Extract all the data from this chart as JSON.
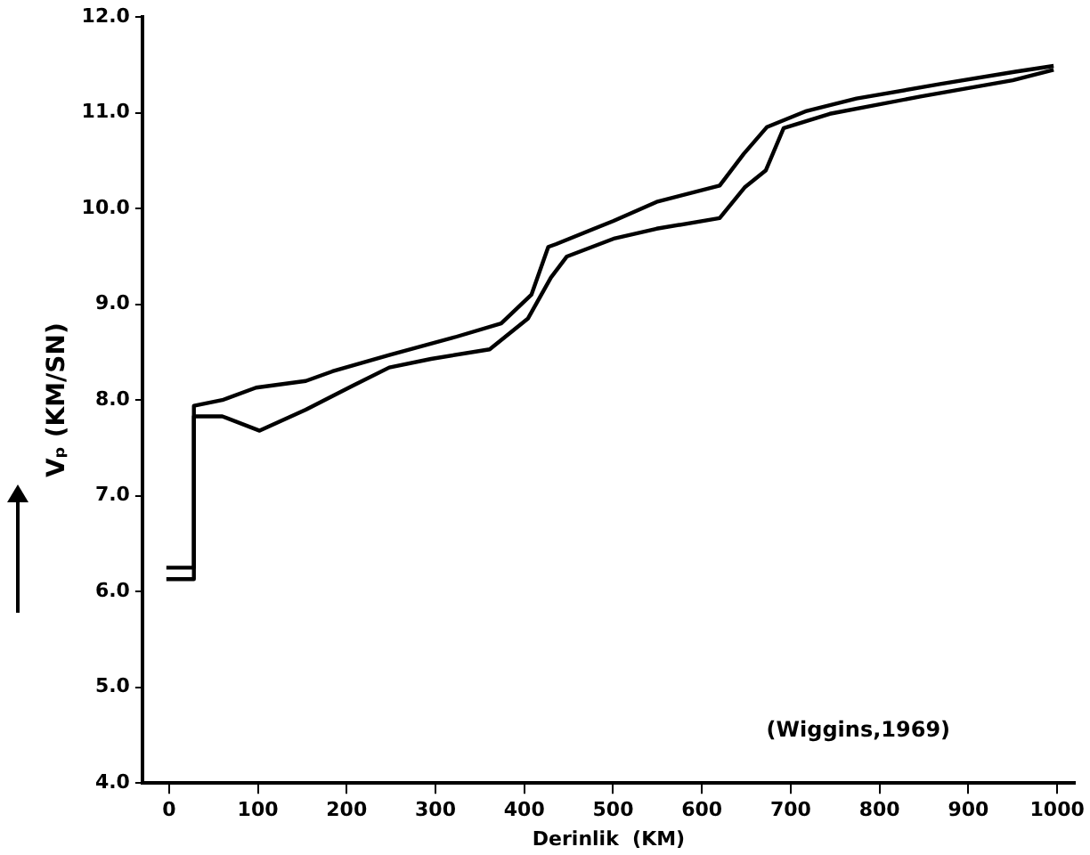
{
  "chart_data": {
    "type": "line",
    "xlabel": "Derinlik  (KM)",
    "ylabel": "Vₚ (KM/SN)",
    "annotations": [
      "(Wiggins,1969)"
    ],
    "xlim": [
      -30,
      1020
    ],
    "ylim": [
      4,
      12
    ],
    "xticks": [
      0,
      100,
      200,
      300,
      400,
      500,
      600,
      700,
      800,
      900,
      1000
    ],
    "yticks": [
      {
        "value": 4,
        "label": "4.0"
      },
      {
        "value": 5,
        "label": "5.0"
      },
      {
        "value": 6,
        "label": "6.0"
      },
      {
        "value": 7,
        "label": "7.0"
      },
      {
        "value": 8,
        "label": "8.0"
      },
      {
        "value": 9,
        "label": "9.0"
      },
      {
        "value": 10,
        "label": "10.0"
      },
      {
        "value": 11,
        "label": "11.0"
      },
      {
        "value": 12,
        "label": "12.0"
      }
    ],
    "grid": false,
    "legend": false,
    "marker": "none",
    "line_style": "solid",
    "series": [
      {
        "color": "#000000",
        "x": [
          -3,
          28,
          28,
          60,
          98,
          154,
          184,
          248,
          323,
          374,
          408,
          427,
          436,
          500,
          549,
          620,
          647,
          673,
          718,
          774,
          868,
          953,
          996
        ],
        "values": [
          6.25,
          6.25,
          7.94,
          8.0,
          8.13,
          8.2,
          8.3,
          8.47,
          8.66,
          8.8,
          9.1,
          9.6,
          9.63,
          9.87,
          10.07,
          10.24,
          10.57,
          10.85,
          11.02,
          11.15,
          11.3,
          11.43,
          11.49
        ]
      },
      {
        "color": "#000000",
        "x": [
          -3,
          28,
          28,
          60,
          102,
          154,
          207,
          248,
          295,
          361,
          404,
          430,
          448,
          502,
          549,
          620,
          648,
          672,
          692,
          744,
          846,
          950,
          996
        ],
        "values": [
          6.13,
          6.13,
          7.83,
          7.83,
          7.68,
          7.9,
          8.15,
          8.34,
          8.43,
          8.53,
          8.85,
          9.28,
          9.5,
          9.69,
          9.79,
          9.9,
          10.22,
          10.4,
          10.84,
          10.99,
          11.17,
          11.34,
          11.45
        ]
      }
    ]
  }
}
